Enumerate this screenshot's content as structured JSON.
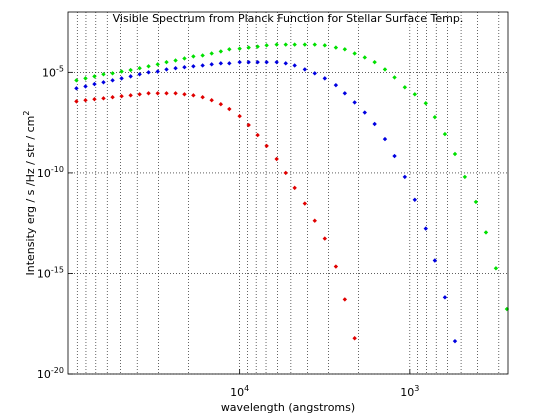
{
  "chart_data": {
    "type": "scatter",
    "title": "Visible Spectrum from Planck Function for Stellar Surface Temp.",
    "x_label": "wavelength (angstroms)",
    "y_label": "Intensity erg / s /Hz / str / cm",
    "y_label_exponent": "2",
    "x_log": true,
    "y_log": true,
    "grid": true,
    "minor_grid": true,
    "xlim": [
      102000,
      265
    ],
    "ylim": [
      1e-20,
      0.01
    ],
    "xticks": [
      {
        "value": 10000,
        "label": "10",
        "exponent": "4"
      },
      {
        "value": 1000,
        "label": "10",
        "exponent": "3"
      }
    ],
    "yticks": [
      {
        "value": 1e-20,
        "label": "10",
        "exponent": "-20"
      },
      {
        "value": 1e-15,
        "label": "10",
        "exponent": "-15"
      },
      {
        "value": 1e-10,
        "label": "10",
        "exponent": "-10"
      },
      {
        "value": 1e-05,
        "label": "10",
        "exponent": "-5"
      }
    ],
    "series": [
      {
        "color": "#e00000",
        "x": [
          91000,
          80500,
          71300,
          63100,
          55800,
          49400,
          43700,
          38700,
          34300,
          30300,
          26900,
          23800,
          21100,
          18700,
          16500,
          14600,
          12900,
          11500,
          10000,
          8850,
          7840,
          6940,
          6060,
          5360,
          4750,
          4140,
          3620,
          3160,
          2720,
          2410,
          2110
        ],
        "values": [
          3.6e-07,
          4.1e-07,
          4.6e-07,
          5.1e-07,
          5.8e-07,
          6.5e-07,
          7.2e-07,
          8.1e-07,
          9.1e-07,
          9.1e-07,
          9.1e-07,
          9.1e-07,
          8.1e-07,
          7.2e-07,
          5.8e-07,
          4.1e-07,
          2.6e-07,
          1.5e-07,
          6.6e-08,
          2.4e-08,
          7.6e-09,
          2.2e-09,
          4.9e-10,
          1e-10,
          1.8e-11,
          3e-12,
          4.2e-13,
          5.4e-14,
          2.2e-15,
          5.1e-17,
          6e-19
        ]
      },
      {
        "color": "#0000e0",
        "x": [
          91000,
          80500,
          71300,
          63100,
          55800,
          49400,
          43700,
          38700,
          34300,
          30300,
          26900,
          23800,
          21100,
          18700,
          16500,
          14600,
          12900,
          11500,
          10000,
          8850,
          7840,
          6940,
          6060,
          5360,
          4750,
          4140,
          3620,
          3160,
          2720,
          2410,
          2110,
          1840,
          1610,
          1400,
          1230,
          1070,
          935,
          806,
          713,
          622,
          543
        ],
        "values": [
          1.6e-06,
          2e-06,
          2.6e-06,
          3.2e-06,
          4e-06,
          5e-06,
          6.3e-06,
          8e-06,
          1e-05,
          1.1e-05,
          1.4e-05,
          1.6e-05,
          1.8e-05,
          2e-05,
          2.2e-05,
          2.5e-05,
          2.8e-05,
          2.8e-05,
          3.2e-05,
          3.2e-05,
          3.2e-05,
          3.2e-05,
          3.2e-05,
          2.8e-05,
          2.2e-05,
          1.4e-05,
          8.9e-06,
          5e-06,
          2.3e-06,
          9.1e-07,
          3.2e-07,
          1e-07,
          2.7e-08,
          4.8e-09,
          6.9e-10,
          6.3e-11,
          4.6e-12,
          1.7e-13,
          4.4e-15,
          6.5e-17,
          4.3e-19
        ]
      },
      {
        "color": "#00e000",
        "x": [
          91000,
          80500,
          71300,
          63100,
          55800,
          49400,
          43700,
          38700,
          34300,
          30300,
          26900,
          23800,
          21100,
          18700,
          16500,
          14600,
          12900,
          11500,
          10000,
          8850,
          7840,
          6940,
          6060,
          5360,
          4750,
          4140,
          3620,
          3160,
          2720,
          2410,
          2110,
          1840,
          1610,
          1400,
          1230,
          1070,
          935,
          806,
          713,
          622,
          543,
          475,
          409,
          357,
          312,
          269
        ],
        "values": [
          4e-06,
          5e-06,
          6.3e-06,
          8e-06,
          8.9e-06,
          1.1e-05,
          1.3e-05,
          1.6e-05,
          2e-05,
          2.5e-05,
          3.2e-05,
          3.9e-05,
          4.9e-05,
          6.2e-05,
          6.9e-05,
          8.7e-05,
          0.00011,
          0.00014,
          0.00015,
          0.00017,
          0.00019,
          0.00022,
          0.00024,
          0.00024,
          0.00024,
          0.00024,
          0.00024,
          0.00022,
          0.00017,
          0.00014,
          8.7e-05,
          5.5e-05,
          3.2e-05,
          1.4e-05,
          5.6e-06,
          1.8e-06,
          8.1e-07,
          2.9e-07,
          5.9e-08,
          8.5e-09,
          8.7e-10,
          6.3e-11,
          3.6e-12,
          1.1e-13,
          1.8e-15,
          1.7e-17
        ]
      }
    ]
  }
}
